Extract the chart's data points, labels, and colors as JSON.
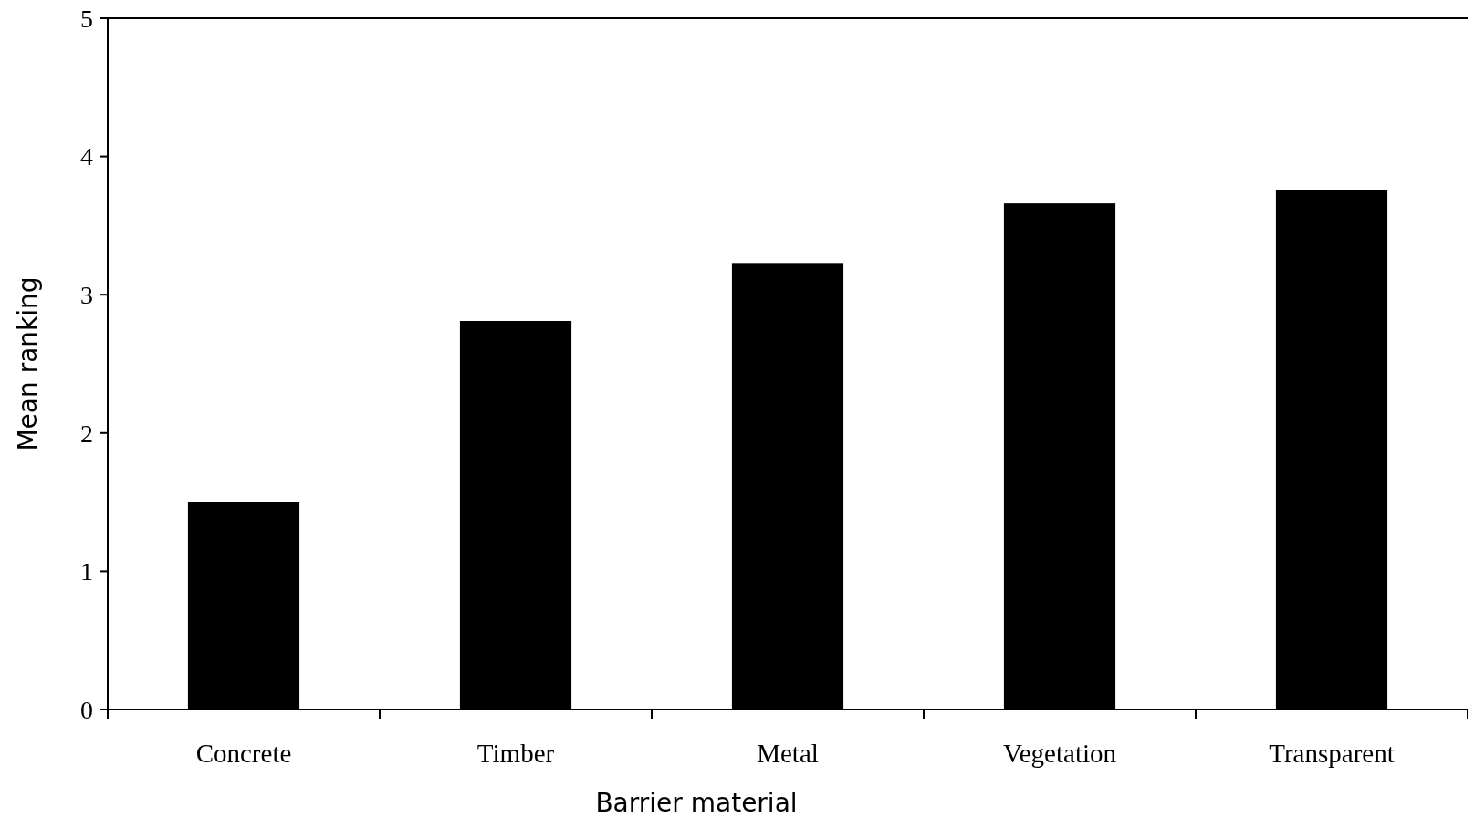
{
  "chart_data": {
    "type": "bar",
    "xlabel": "Barrier material",
    "ylabel": "Mean ranking",
    "categories": [
      "Concrete",
      "Timber",
      "Metal",
      "Vegetation",
      "Transparent"
    ],
    "values": [
      1.5,
      2.81,
      3.23,
      3.66,
      3.76
    ],
    "color": "#000000",
    "ylim": [
      0,
      5
    ],
    "yticks": [
      0,
      1,
      2,
      3,
      4,
      5
    ],
    "grid": false
  }
}
